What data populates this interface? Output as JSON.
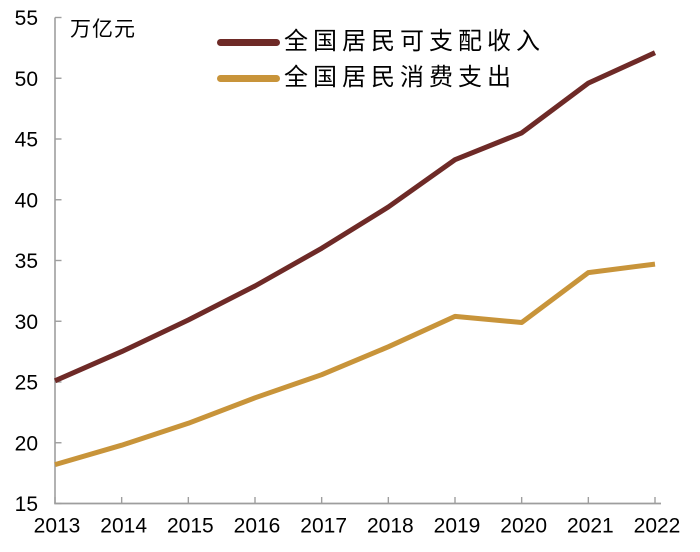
{
  "chart_data": {
    "type": "line",
    "title": "万亿元",
    "categories": [
      "2013",
      "2014",
      "2015",
      "2016",
      "2017",
      "2018",
      "2019",
      "2020",
      "2021",
      "2022"
    ],
    "series": [
      {
        "name": "全国居民可支配收入",
        "color": "#6E2A27",
        "values": [
          25.1,
          27.5,
          30.1,
          32.9,
          36.0,
          39.4,
          43.3,
          45.5,
          49.6,
          52.1
        ]
      },
      {
        "name": "全国居民消费支出",
        "color": "#C8943A",
        "values": [
          18.2,
          19.8,
          21.6,
          23.7,
          25.6,
          27.9,
          30.4,
          29.9,
          34.0,
          34.7
        ]
      }
    ],
    "ylim": [
      15,
      55
    ],
    "yticks": [
      15,
      20,
      25,
      30,
      35,
      40,
      45,
      50,
      55
    ],
    "grid": false,
    "legend_position": "top-center",
    "axis_color": "#9E9E9E",
    "text_color": "#000000",
    "tick_label_font_px": 21
  }
}
